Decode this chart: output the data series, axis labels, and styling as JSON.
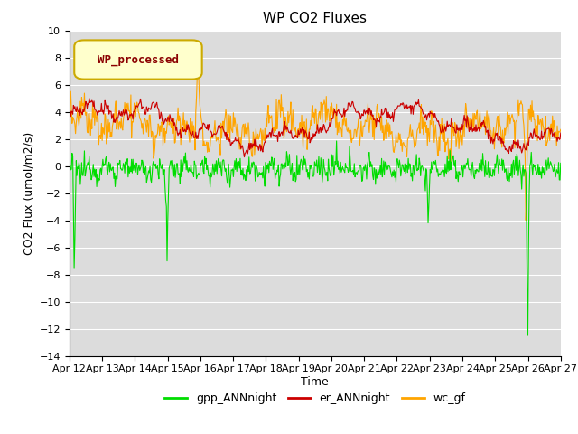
{
  "title": "WP CO2 Fluxes",
  "xlabel": "Time",
  "ylabel_display": "CO2 Flux (umol/m2/s)",
  "ylim": [
    -14,
    10
  ],
  "xlim": [
    0,
    360
  ],
  "x_tick_labels": [
    "Apr 12",
    "Apr 13",
    "Apr 14",
    "Apr 15",
    "Apr 16",
    "Apr 17",
    "Apr 18",
    "Apr 19",
    "Apr 20",
    "Apr 21",
    "Apr 22",
    "Apr 23",
    "Apr 24",
    "Apr 25",
    "Apr 26",
    "Apr 27"
  ],
  "x_tick_positions": [
    0,
    24,
    48,
    72,
    96,
    120,
    144,
    168,
    192,
    216,
    240,
    264,
    288,
    312,
    336,
    360
  ],
  "gpp_color": "#00dd00",
  "er_color": "#cc0000",
  "wc_color": "#ffa500",
  "legend_label": "WP_processed",
  "legend_text_color": "#8b0000",
  "legend_bg_color": "#ffffcc",
  "legend_border_color": "#ccaa00",
  "bg_color": "#dcdcdc",
  "grid_color": "#ffffff",
  "n_points": 720,
  "title_fontsize": 11,
  "axis_fontsize": 9,
  "tick_fontsize": 8
}
